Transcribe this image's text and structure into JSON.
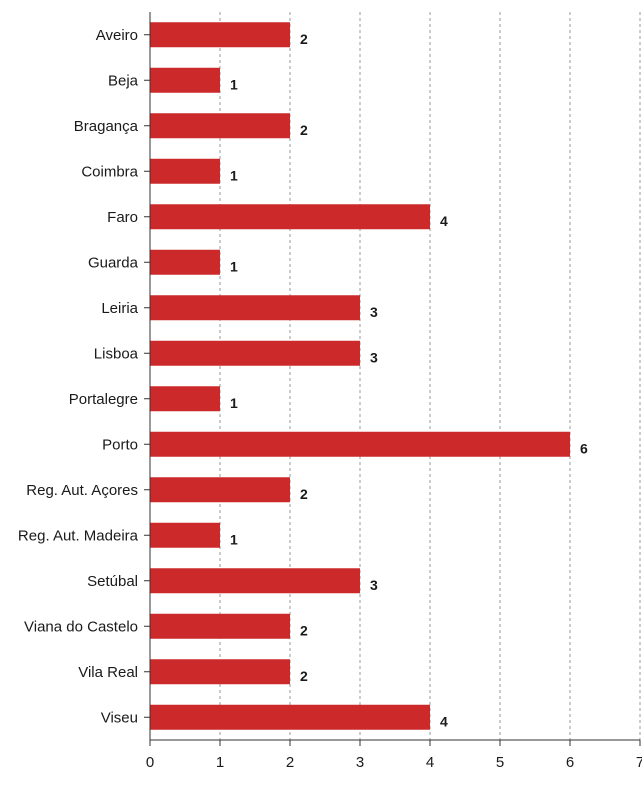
{
  "chart_data": {
    "type": "bar",
    "orientation": "horizontal",
    "title": "",
    "xlabel": "",
    "ylabel": "",
    "categories": [
      "Aveiro",
      "Beja",
      "Bragança",
      "Coimbra",
      "Faro",
      "Guarda",
      "Leiria",
      "Lisboa",
      "Portalegre",
      "Porto",
      "Reg. Aut. Açores",
      "Reg. Aut. Madeira",
      "Setúbal",
      "Viana do Castelo",
      "Vila Real",
      "Viseu"
    ],
    "values": [
      2,
      1,
      2,
      1,
      4,
      1,
      3,
      3,
      1,
      6,
      2,
      1,
      3,
      2,
      2,
      4
    ],
    "xlim": [
      0,
      7
    ],
    "xticks": [
      "0",
      "1",
      "2",
      "3",
      "4",
      "5",
      "6",
      "7"
    ],
    "grid": "vertical-dashed",
    "legend": "none",
    "bar_color": "#cc2a2a"
  }
}
